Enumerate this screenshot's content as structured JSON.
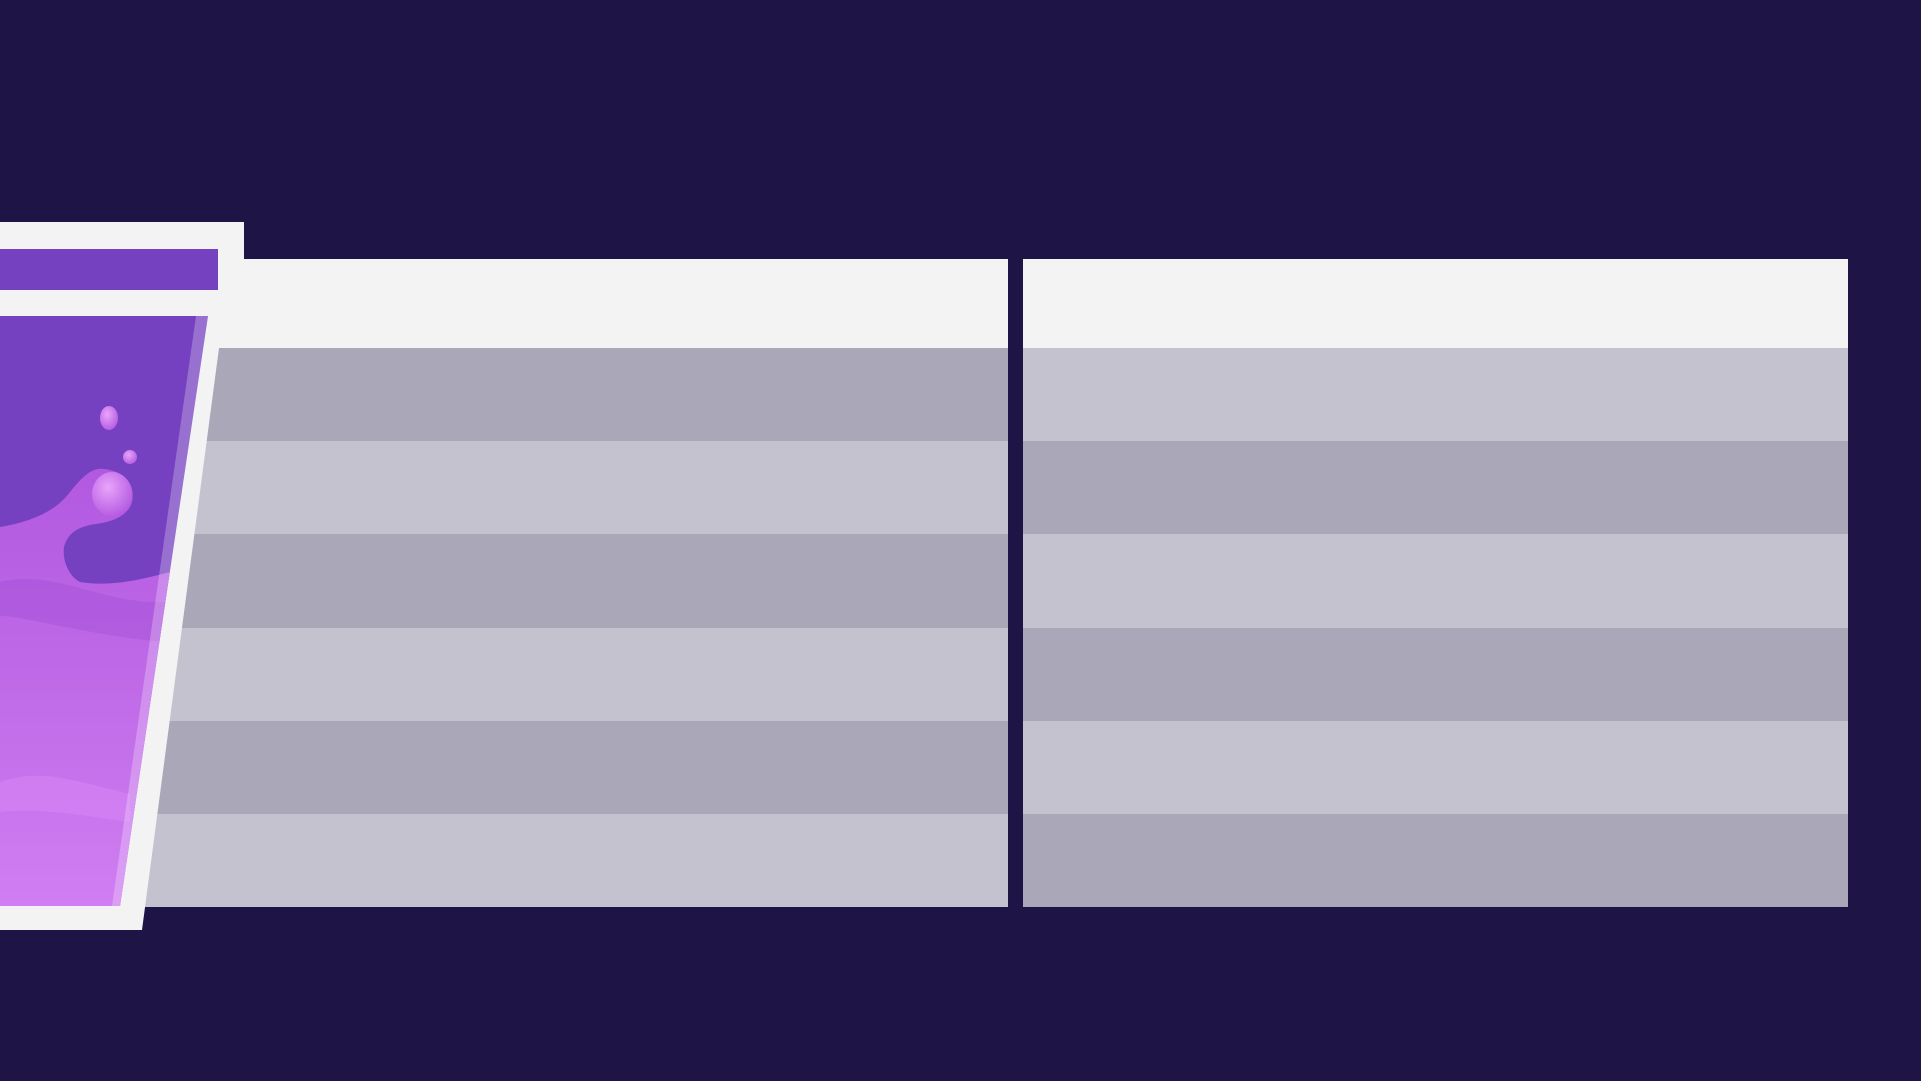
{
  "tables": {
    "left": {
      "header": "",
      "rows": [
        "",
        "",
        "",
        "",
        "",
        ""
      ]
    },
    "right": {
      "header": "",
      "rows": [
        "",
        "",
        "",
        "",
        "",
        ""
      ]
    }
  },
  "colors": {
    "background": "#1e1546",
    "header": "#f3f3f4",
    "row_dark": "#a9a7b8",
    "row_light": "#c4c2ce",
    "glass_frame": "#f3f3f4",
    "drink_purple": "#7541c0",
    "splash_pink": "#c86cf0"
  },
  "graphic": {
    "icon": "purple-drink-glass-icon"
  }
}
